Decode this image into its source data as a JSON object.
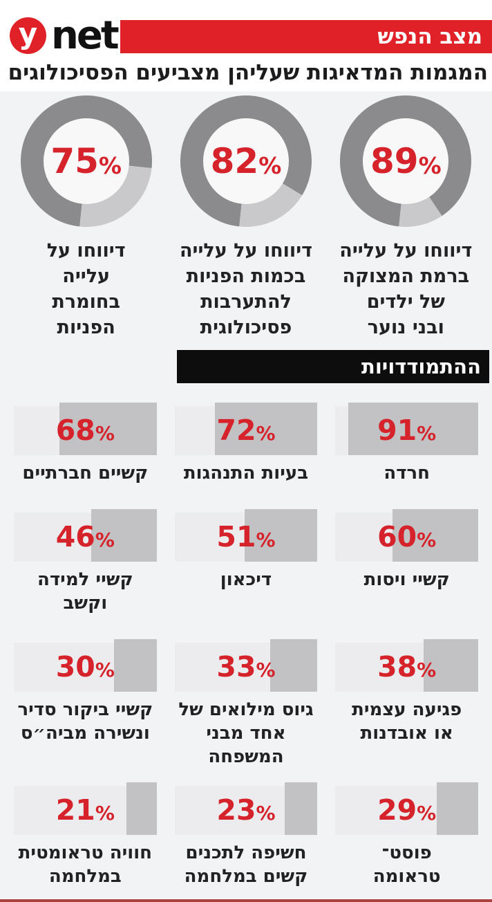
{
  "header": {
    "logo_y": "y",
    "logo_net": "net",
    "banner_label": "מצב הנפש",
    "title": "המגמות המדאיגות שעליהן מצביעים הפסיכולוגים"
  },
  "percent_sign": "%",
  "section_banner": "ההתמודדויות",
  "donuts": [
    {
      "value": 75,
      "caption": "דיווחו על\nעלייה\nבחומרת\nהפניות"
    },
    {
      "value": 82,
      "caption": "דיווחו על עלייה\nבכמות הפניות\nלהתערבות\nפסיכולוגית"
    },
    {
      "value": 89,
      "caption": "דיווחו על עלייה\nברמת המצוקה\nשל ילדים\nובני נוער"
    }
  ],
  "stats_rows": [
    [
      {
        "value": 68,
        "label": "קשיים חברתיים"
      },
      {
        "value": 72,
        "label": "בעיות התנהגות"
      },
      {
        "value": 91,
        "label": "חרדה"
      }
    ],
    [
      {
        "value": 46,
        "label": "קשיי למידה וקשב"
      },
      {
        "value": 51,
        "label": "דיכאון"
      },
      {
        "value": 60,
        "label": "קשיי ויסות"
      }
    ],
    [
      {
        "value": 30,
        "label": "קשיי ביקור סדיר\nונשירה מביה״ס"
      },
      {
        "value": 33,
        "label": "גיוס מילואים של\nאחד מבני המשפחה"
      },
      {
        "value": 38,
        "label": "פגיעה עצמית\nאו אובדנות"
      }
    ],
    [
      {
        "value": 21,
        "label": "חוויה טראומטית\nבמלחמה"
      },
      {
        "value": 23,
        "label": "חשיפה לתכנים\nקשים במלחמה"
      },
      {
        "value": 29,
        "label": "פוסט־\nטראומה"
      }
    ]
  ],
  "colors": {
    "accent_red": "#d5222b",
    "banner_red": "#e02127",
    "donut_dark": "#8b8b8d",
    "donut_light": "#c9c9cb",
    "bar_fill": "#c2c2c4",
    "bar_bg": "#ececee",
    "sheet_bg": "#f2f3f5",
    "bottom_line": "#a9423e"
  },
  "chart_data": [
    {
      "type": "pie",
      "subtype": "donut-gauges",
      "title": "המגמות המדאיגות שעליהן מצביעים הפסיכולוגים",
      "unit": "%",
      "series": [
        {
          "name": "דיווחו על עלייה ברמת המצוקה של ילדים ובני נוער",
          "value": 89
        },
        {
          "name": "דיווחו על עלייה בכמות הפניות להתערבות פסיכולוגית",
          "value": 82
        },
        {
          "name": "דיווחו על עלייה בחומרת הפניות",
          "value": 75
        }
      ]
    },
    {
      "type": "bar",
      "subtype": "horizontal-percent-tiles",
      "title": "ההתמודדויות",
      "unit": "%",
      "categories": [
        "חרדה",
        "בעיות התנהגות",
        "קשיים חברתיים",
        "קשיי ויסות",
        "דיכאון",
        "קשיי למידה וקשב",
        "פגיעה עצמית או אובדנות",
        "גיוס מילואים של אחד מבני המשפחה",
        "קשיי ביקור סדיר ונשירה מביה״ס",
        "פוסט־טראומה",
        "חשיפה לתכנים קשים במלחמה",
        "חוויה טראומטית במלחמה"
      ],
      "values": [
        91,
        72,
        68,
        60,
        51,
        46,
        38,
        33,
        30,
        29,
        23,
        21
      ],
      "xlim": [
        0,
        100
      ]
    }
  ]
}
